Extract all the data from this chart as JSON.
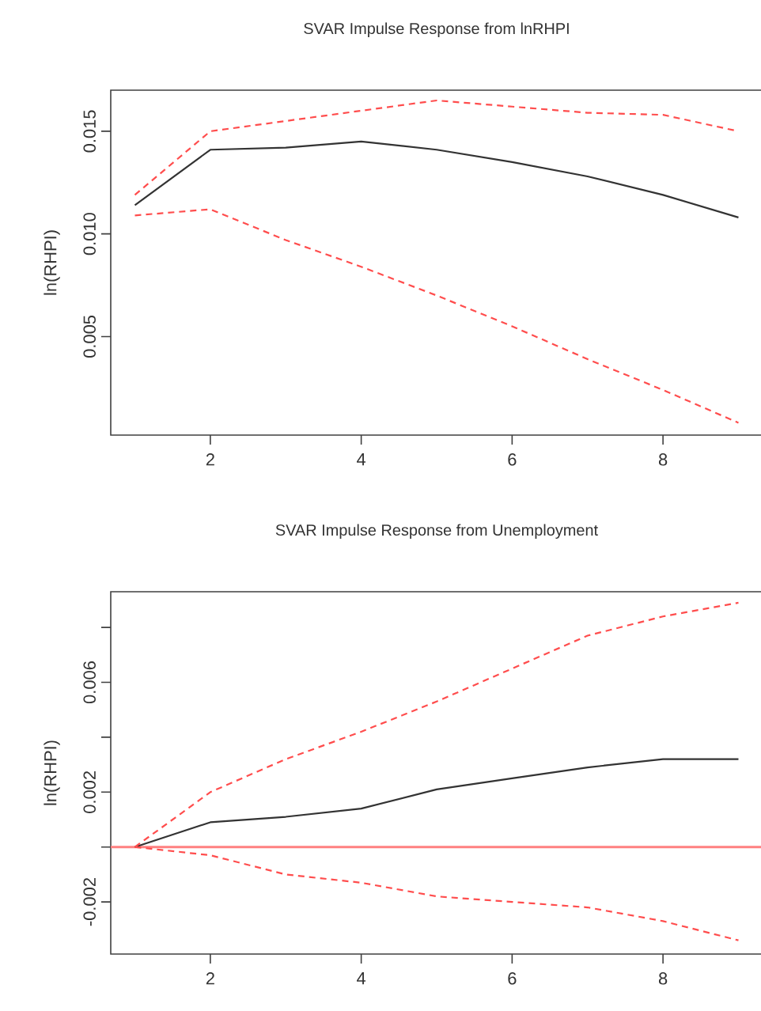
{
  "chart_data": [
    {
      "type": "line",
      "title": "SVAR Impulse Response from lnRHPI",
      "ylabel": "ln(RHPI)",
      "x": [
        1,
        2,
        3,
        4,
        5,
        6,
        7,
        8,
        9
      ],
      "series": [
        {
          "color": "#333333",
          "line_style": "solid",
          "values": [
            0.0114,
            0.0141,
            0.0142,
            0.0145,
            0.0141,
            0.0135,
            0.0128,
            0.0119,
            0.0108
          ]
        },
        {
          "color": "#ff4d4d",
          "line_style": "dashed",
          "values": [
            0.0119,
            0.015,
            0.0155,
            0.016,
            0.0165,
            0.0162,
            0.0159,
            0.0158,
            0.015
          ]
        },
        {
          "color": "#ff4d4d",
          "line_style": "dashed",
          "values": [
            0.0109,
            0.0112,
            0.0097,
            0.0084,
            0.007,
            0.0055,
            0.0039,
            0.0024,
            0.0008
          ]
        }
      ],
      "xlim": [
        0.68,
        9.32
      ],
      "ylim": [
        0.0002,
        0.017
      ],
      "xticks": [
        2,
        4,
        6,
        8
      ],
      "yticks": [
        {
          "value": 0.005,
          "label": "0.005"
        },
        {
          "value": 0.01,
          "label": "0.010"
        },
        {
          "value": 0.015,
          "label": "0.015"
        }
      ]
    },
    {
      "type": "line",
      "title": "SVAR Impulse Response from Unemployment",
      "ylabel": "ln(RHPI)",
      "x": [
        1,
        2,
        3,
        4,
        5,
        6,
        7,
        8,
        9
      ],
      "series": [
        {
          "color": "#333333",
          "line_style": "solid",
          "values": [
            0,
            0.0009,
            0.0011,
            0.0014,
            0.0021,
            0.0025,
            0.0029,
            0.0032,
            0.0032
          ]
        },
        {
          "color": "#ff4d4d",
          "line_style": "dashed",
          "values": [
            0,
            0.002,
            0.0032,
            0.0042,
            0.0053,
            0.0065,
            0.0077,
            0.0084,
            0.0089
          ]
        },
        {
          "color": "#ff4d4d",
          "line_style": "dashed",
          "values": [
            0,
            -0.0003,
            -0.001,
            -0.0013,
            -0.0018,
            -0.002,
            -0.0022,
            -0.0027,
            -0.0034
          ]
        }
      ],
      "xlim": [
        0.68,
        9.32
      ],
      "ylim": [
        -0.0039,
        0.0093
      ],
      "xticks": [
        2,
        4,
        6,
        8
      ],
      "yticks": [
        {
          "value": -0.002,
          "label": "-0.002"
        },
        {
          "value": 0,
          "label": null
        },
        {
          "value": 0.002,
          "label": "0.002"
        },
        {
          "value": 0.004,
          "label": null
        },
        {
          "value": 0.006,
          "label": "0.006"
        },
        {
          "value": 0.008,
          "label": null
        }
      ],
      "ref_lines": [
        {
          "axis": "y",
          "value": 0,
          "color": "#ff8080"
        }
      ]
    }
  ]
}
